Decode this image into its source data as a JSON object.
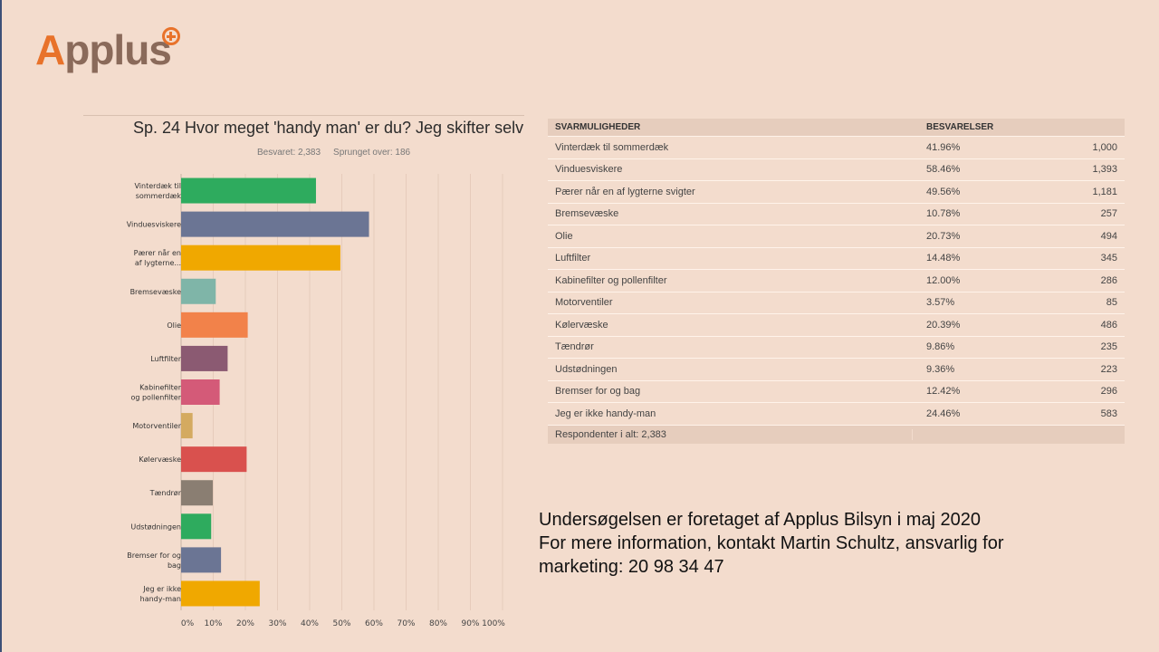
{
  "logo": {
    "text_a": "A",
    "text_rest": "pplus"
  },
  "colors": {
    "background": "#f3dccd",
    "accent": "#e8722a"
  },
  "chart_data": {
    "type": "bar",
    "orientation": "horizontal",
    "title": "Sp. 24 Hvor meget 'handy man' er du? Jeg skifter selv",
    "answered": "Besvaret: 2,383",
    "skipped": "Sprunget over: 186",
    "categories": [
      "Vinterdæk til\nsommerdæk",
      "Vinduesviskere",
      "Pærer når en\naf lygterne...",
      "Bremsevæske",
      "Olie",
      "Luftfilter",
      "Kabinefilter\nog pollenfilter",
      "Motorventiler",
      "Kølervæske",
      "Tændrør",
      "Udstødningen",
      "Bremser for og\nbag",
      "Jeg er ikke\nhandy-man"
    ],
    "values": [
      41.96,
      58.46,
      49.56,
      10.78,
      20.73,
      14.48,
      12.0,
      3.57,
      20.39,
      9.86,
      9.36,
      12.42,
      24.46
    ],
    "bar_colors": [
      "#2eab5e",
      "#6b7594",
      "#f0a800",
      "#7fb5a8",
      "#f2824a",
      "#8b5a72",
      "#d45a78",
      "#d4aa60",
      "#d9514e",
      "#8a7e72",
      "#2eab5e",
      "#6b7594",
      "#f0a800"
    ],
    "xlim": [
      0,
      100
    ],
    "xticks": [
      "0%",
      "10%",
      "20%",
      "30%",
      "40%",
      "50%",
      "60%",
      "70%",
      "80%",
      "90%",
      "100%"
    ],
    "grid": true
  },
  "table": {
    "headers": [
      "SVARMULIGHEDER",
      "BESVARELSER"
    ],
    "rows": [
      [
        "Vinterdæk til sommerdæk",
        "41.96%",
        "1,000"
      ],
      [
        "Vinduesviskere",
        "58.46%",
        "1,393"
      ],
      [
        "Pærer når en af lygterne svigter",
        "49.56%",
        "1,181"
      ],
      [
        "Bremsevæske",
        "10.78%",
        "257"
      ],
      [
        "Olie",
        "20.73%",
        "494"
      ],
      [
        "Luftfilter",
        "14.48%",
        "345"
      ],
      [
        "Kabinefilter og pollenfilter",
        "12.00%",
        "286"
      ],
      [
        "Motorventiler",
        "3.57%",
        "85"
      ],
      [
        "Kølervæske",
        "20.39%",
        "486"
      ],
      [
        "Tændrør",
        "9.86%",
        "235"
      ],
      [
        "Udstødningen",
        "9.36%",
        "223"
      ],
      [
        "Bremser for og bag",
        "12.42%",
        "296"
      ],
      [
        "Jeg er ikke handy-man",
        "24.46%",
        "583"
      ]
    ],
    "footer": "Respondenter i alt: 2,383"
  },
  "note": {
    "line1": "Undersøgelsen er foretaget af Applus Bilsyn i maj 2020",
    "line2": "For mere information, kontakt Martin Schultz, ansvarlig for",
    "line3": "marketing: 20 98 34 47"
  }
}
